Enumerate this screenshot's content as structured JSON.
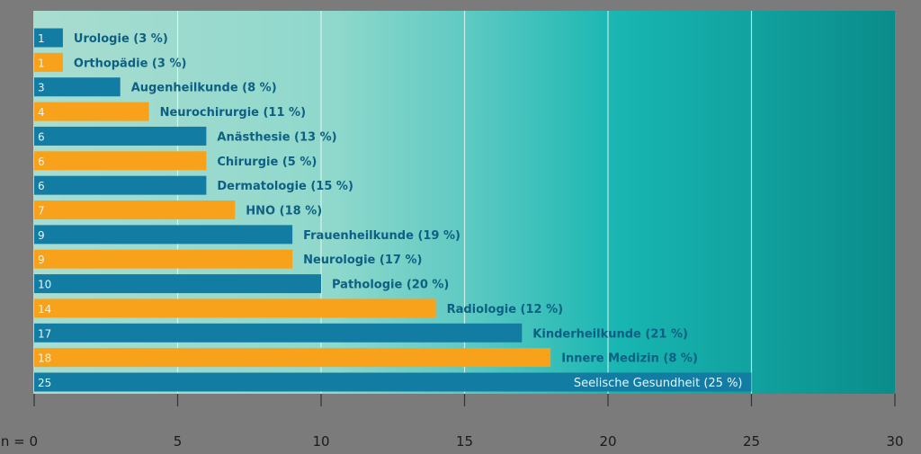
{
  "chart_data": {
    "type": "bar",
    "orientation": "horizontal",
    "categories": [
      "Urologie (3 %)",
      "Orthopädie (3 %)",
      "Augenheilkunde (8 %)",
      "Neurochirurgie (11 %)",
      "Anästhesie (13 %)",
      "Chirurgie (5 %)",
      "Dermatologie (15 %)",
      "HNO (18 %)",
      "Frauenheilkunde (19 %)",
      "Neurologie (17 %)",
      "Pathologie (20 %)",
      "Radiologie (12 %)",
      "Kinderheilkunde (21 %)",
      "Innere Medizin (8 %)",
      "Seelische Gesundheit (25 %)"
    ],
    "values": [
      1,
      1,
      3,
      4,
      6,
      6,
      6,
      7,
      9,
      9,
      10,
      14,
      17,
      18,
      25
    ],
    "value_labels": [
      "1",
      "1",
      "3",
      "4",
      "6",
      "6",
      "6",
      "7",
      "9",
      "9",
      "10",
      "14",
      "17",
      "18",
      "25"
    ],
    "bar_colors": [
      "#137ca3",
      "#f8a21c",
      "#137ca3",
      "#f8a21c",
      "#137ca3",
      "#f8a21c",
      "#137ca3",
      "#f8a21c",
      "#137ca3",
      "#f8a21c",
      "#137ca3",
      "#f8a21c",
      "#137ca3",
      "#f8a21c",
      "#137ca3"
    ],
    "xlim": [
      0,
      30
    ],
    "xticks": [
      0,
      5,
      10,
      15,
      20,
      25,
      30
    ],
    "xtick_labels": [
      "n = 0",
      "5",
      "10",
      "15",
      "20",
      "25",
      "30"
    ],
    "grid": true,
    "title": "",
    "xlabel": "",
    "ylabel": ""
  }
}
